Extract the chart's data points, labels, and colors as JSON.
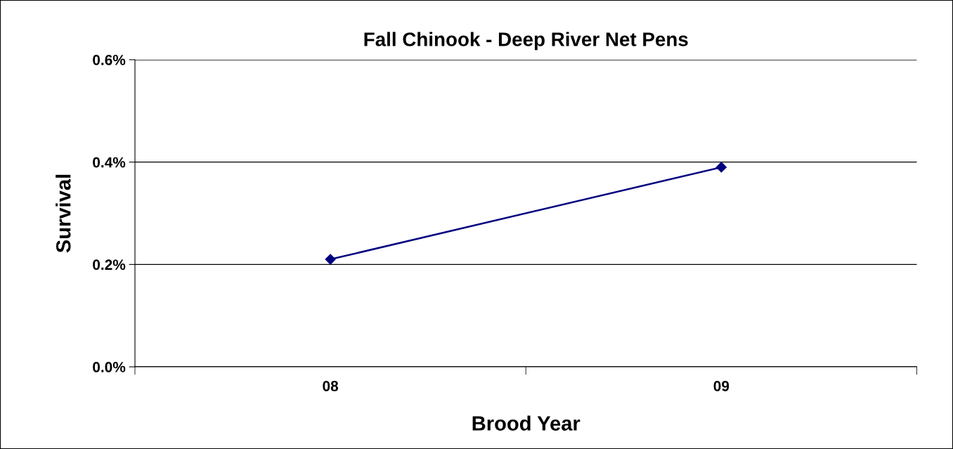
{
  "chart_data": {
    "type": "line",
    "title": "Fall Chinook - Deep River Net Pens",
    "xlabel": "Brood Year",
    "ylabel": "Survival",
    "categories": [
      "08",
      "09"
    ],
    "series": [
      {
        "color": "#000080",
        "values": [
          0.21,
          0.39
        ]
      }
    ],
    "ylim": [
      0,
      0.6
    ],
    "yticks": [
      {
        "value": 0,
        "label": "0.0%"
      },
      {
        "value": 0.2,
        "label": "0.2%"
      },
      {
        "value": 0.4,
        "label": "0.4%"
      },
      {
        "value": 0.6,
        "label": "0.6%"
      }
    ],
    "grid": "y",
    "marker": "diamond",
    "line_style": "solid",
    "legend": false
  }
}
